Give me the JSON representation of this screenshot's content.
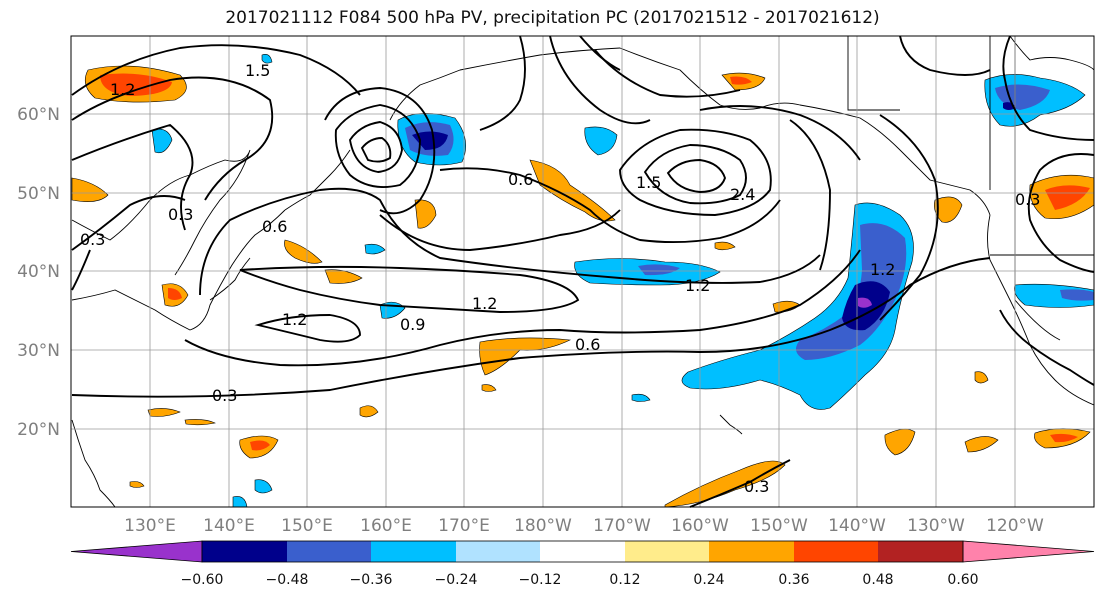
{
  "title": "2017021112 F084 500 hPa PV, precipitation PC (2017021512 - 2017021612)",
  "map": {
    "lon_labels": [
      "130°E",
      "140°E",
      "150°E",
      "160°E",
      "170°E",
      "180°W",
      "170°W",
      "160°W",
      "150°W",
      "140°W",
      "130°W",
      "120°W"
    ],
    "lat_labels": [
      "60°N",
      "50°N",
      "40°N",
      "30°N",
      "20°N"
    ],
    "contour_labels": [
      "1.5",
      "1.2",
      "0.6",
      "1.2",
      "0.3",
      "1.2",
      "0.6",
      "0.9",
      "0.6",
      "1.2",
      "0.3",
      "1.5",
      "2.4",
      "1.2",
      "0.3",
      "0.3",
      "0.3"
    ]
  },
  "colorbar": {
    "ticks": [
      "−0.60",
      "−0.48",
      "−0.36",
      "−0.24",
      "−0.12",
      "0.12",
      "0.24",
      "0.36",
      "0.48",
      "0.60"
    ],
    "colors": [
      "#9932cc",
      "#00008b",
      "#3a5fcd",
      "#00bfff",
      "#b0e2ff",
      "#ffffff",
      "#ffec8b",
      "#ffa500",
      "#ff4500",
      "#b22222",
      "#ff82ab"
    ]
  }
}
